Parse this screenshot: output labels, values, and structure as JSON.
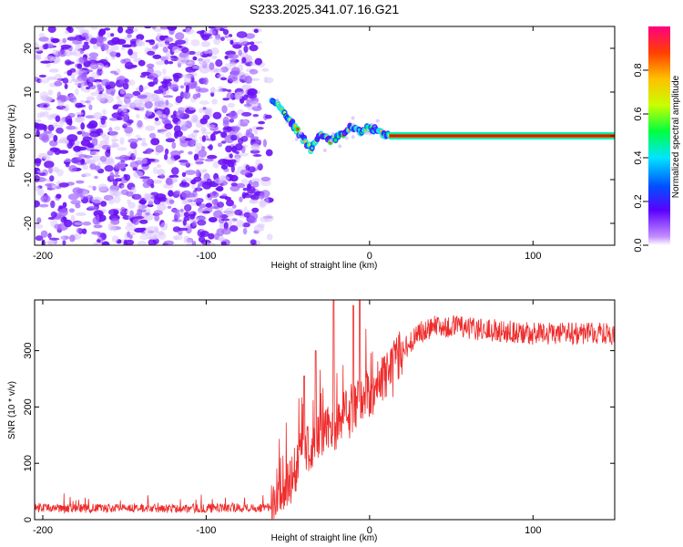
{
  "title": "S233.2025.341.07.16.G21",
  "chart_data": [
    {
      "type": "heatmap",
      "name": "spectrogram",
      "xlabel": "Height of straight line (km)",
      "ylabel": "Frequency (Hz)",
      "xlim": [
        -205,
        150
      ],
      "ylim": [
        -25,
        25
      ],
      "xticks": [
        -200,
        -100,
        0,
        100
      ],
      "xtick_labels": [
        "-200",
        "-100",
        "0",
        "100"
      ],
      "yticks": [
        -20,
        -10,
        0,
        10,
        20
      ],
      "ytick_labels": [
        "-20",
        "-10",
        "0",
        "10",
        "20"
      ],
      "noise_region": {
        "x_start": -205,
        "x_end": -60,
        "freq_range": [
          -25,
          25
        ],
        "amplitude_range": [
          0.0,
          0.25
        ]
      },
      "transition_region": {
        "x_start": -60,
        "x_end": 12,
        "peak_frequency_hz": [
          [
            -58,
            8
          ],
          [
            -52,
            5
          ],
          [
            -46,
            2
          ],
          [
            -42,
            0
          ],
          [
            -36,
            -3
          ],
          [
            -30,
            0
          ],
          [
            -24,
            -1
          ],
          [
            -18,
            0
          ],
          [
            -12,
            2
          ],
          [
            -6,
            1
          ],
          [
            0,
            2
          ],
          [
            6,
            1
          ],
          [
            12,
            0
          ]
        ],
        "amplitude_range": [
          0.3,
          0.85
        ]
      },
      "signal_line": {
        "x_start": 12,
        "x_end": 150,
        "frequency_hz": 0,
        "amplitude": 0.95
      },
      "colorbar": {
        "label": "Normalized spectral amplitude",
        "range": [
          0.0,
          1.0
        ],
        "ticks": [
          0.0,
          0.2,
          0.4,
          0.6,
          0.8
        ],
        "tick_labels": [
          "0.0",
          "0.2",
          "0.4",
          "0.6",
          "0.8"
        ],
        "colors": [
          "#ffffff",
          "#c38cff",
          "#5a00ff",
          "#0050ff",
          "#00e5ff",
          "#00ff40",
          "#c8ff00",
          "#ffc000",
          "#ff4000",
          "#ff0080"
        ]
      }
    },
    {
      "type": "line",
      "name": "snr",
      "xlabel": "Height of straight line (km)",
      "ylabel": "SNR (10 * v/v)",
      "xlim": [
        -205,
        150
      ],
      "ylim": [
        0,
        390
      ],
      "xticks": [
        -200,
        -100,
        0,
        100
      ],
      "xtick_labels": [
        "-200",
        "-100",
        "0",
        "100"
      ],
      "yticks": [
        0,
        100,
        200,
        300
      ],
      "ytick_labels": [
        "0",
        "100",
        "200",
        "300"
      ],
      "series": [
        {
          "name": "SNR",
          "color": "#ee2b2b",
          "trend": {
            "x": [
              -205,
              -100,
              -60,
              -55,
              -48,
              -40,
              -30,
              -20,
              -10,
              0,
              10,
              20,
              30,
              40,
              60,
              80,
              100,
              120,
              150
            ],
            "y": [
              20,
              20,
              22,
              40,
              80,
              120,
              150,
              170,
              200,
              220,
              260,
              300,
              330,
              345,
              340,
              335,
              330,
              330,
              330
            ]
          },
          "spikes": [
            {
              "x": -40,
              "y": 255
            },
            {
              "x": -33,
              "y": 300
            },
            {
              "x": -22,
              "y": 390
            },
            {
              "x": -10,
              "y": 380
            },
            {
              "x": -6,
              "y": 390
            }
          ]
        }
      ]
    }
  ]
}
